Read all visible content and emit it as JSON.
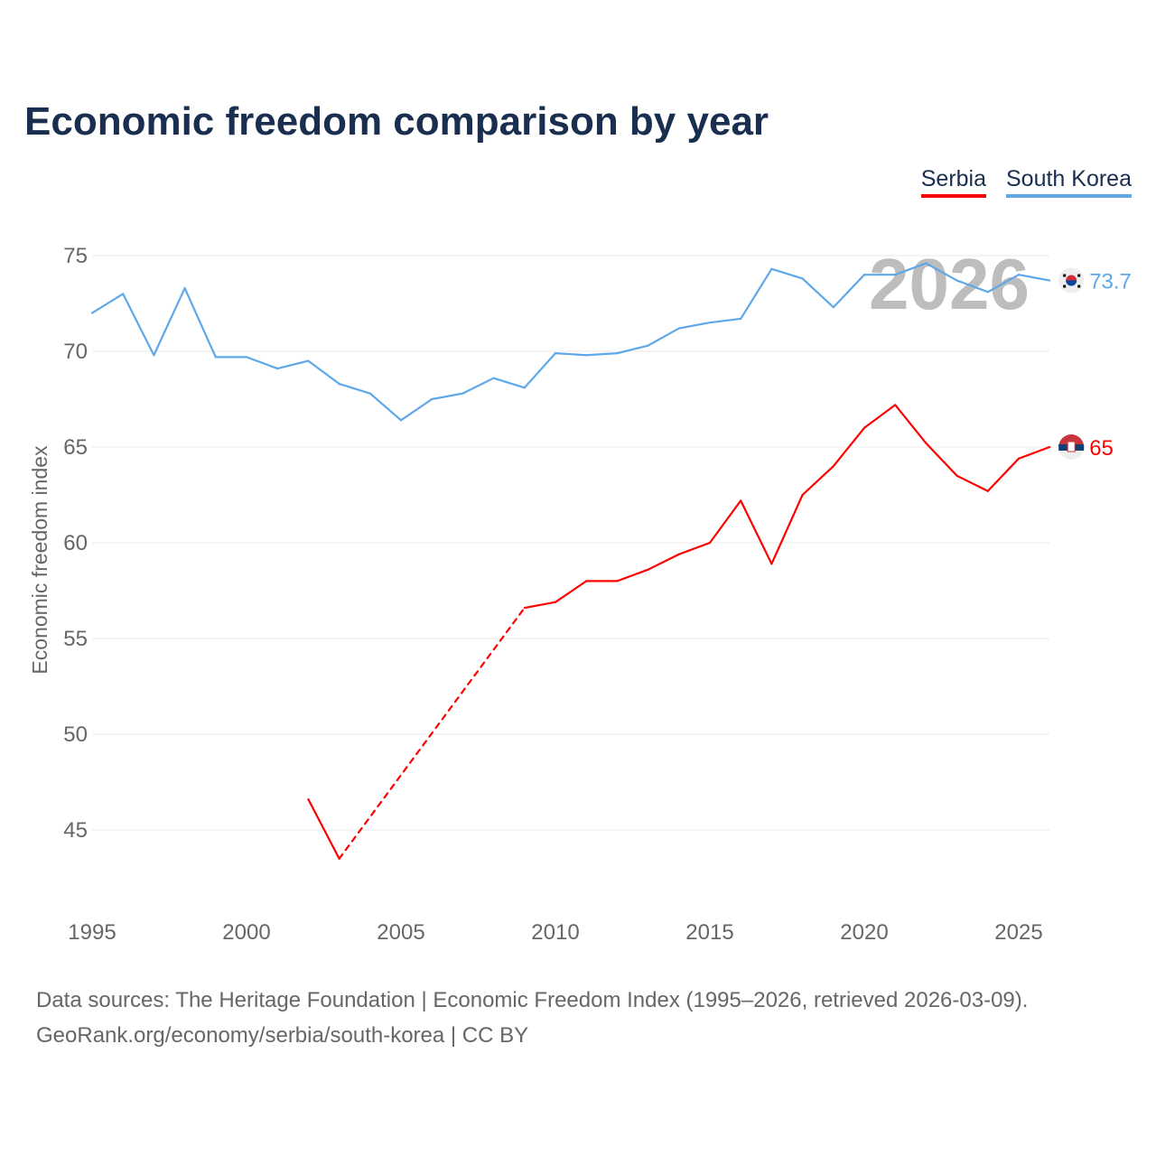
{
  "chart_data": {
    "type": "line",
    "title": "Economic freedom comparison by year",
    "xlabel": "",
    "ylabel": "Economic freedom index",
    "xlim": [
      1995,
      2026
    ],
    "ylim": [
      41,
      77
    ],
    "x_ticks": [
      1995,
      2000,
      2005,
      2010,
      2015,
      2020,
      2025
    ],
    "y_ticks": [
      45,
      50,
      55,
      60,
      65,
      70,
      75
    ],
    "grid": true,
    "legend_placement": "top-right",
    "year_label": "2026",
    "series": [
      {
        "name": "Serbia",
        "color": "#ff0000",
        "end_label": "65",
        "x": [
          2002,
          2003,
          2009,
          2010,
          2011,
          2012,
          2013,
          2014,
          2015,
          2016,
          2017,
          2018,
          2019,
          2020,
          2021,
          2022,
          2023,
          2024,
          2025,
          2026
        ],
        "values": [
          46.6,
          43.5,
          56.6,
          56.9,
          58.0,
          58.0,
          58.6,
          59.4,
          60.0,
          62.2,
          58.9,
          62.5,
          64.0,
          66.0,
          67.2,
          65.2,
          63.5,
          62.7,
          64.4,
          65.0
        ],
        "dashed_gap": [
          2003,
          2009
        ]
      },
      {
        "name": "South Korea",
        "color": "#5ea8ea",
        "end_label": "73.7",
        "x": [
          1995,
          1996,
          1997,
          1998,
          1999,
          2000,
          2001,
          2002,
          2003,
          2004,
          2005,
          2006,
          2007,
          2008,
          2009,
          2010,
          2011,
          2012,
          2013,
          2014,
          2015,
          2016,
          2017,
          2018,
          2019,
          2020,
          2021,
          2022,
          2023,
          2024,
          2025,
          2026
        ],
        "values": [
          72.0,
          73.0,
          69.8,
          73.3,
          69.7,
          69.7,
          69.1,
          69.5,
          68.3,
          67.8,
          66.4,
          67.5,
          67.8,
          68.6,
          68.1,
          69.9,
          69.8,
          69.9,
          70.3,
          71.2,
          71.5,
          71.7,
          74.3,
          73.8,
          72.3,
          74.0,
          74.0,
          74.6,
          73.7,
          73.1,
          74.0,
          73.7
        ]
      }
    ]
  },
  "source_line1": "Data sources: The Heritage Foundation | Economic Freedom Index (1995–2026, retrieved 2026-03-09).",
  "source_line2": "GeoRank.org/economy/serbia/south-korea | CC BY"
}
